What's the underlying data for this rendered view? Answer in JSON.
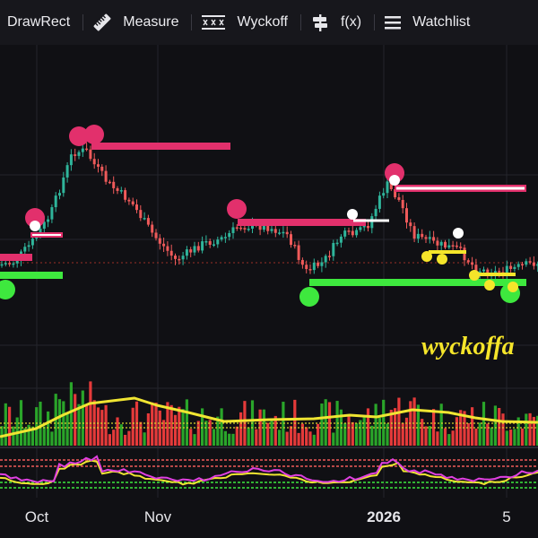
{
  "toolbar": {
    "items": [
      {
        "label": "DrawRect",
        "icon": "draw-rect-icon"
      },
      {
        "label": "Measure",
        "icon": "ruler-icon"
      },
      {
        "label": "Wyckoff",
        "icon": "wyckoff-icon"
      },
      {
        "label": "f(x)",
        "icon": "function-icon"
      },
      {
        "label": "Watchlist",
        "icon": "list-icon"
      }
    ]
  },
  "watermark": "wyckoffa",
  "colors": {
    "background": "#101014",
    "up_candle": "#2fb59b",
    "down_candle": "#ef5a5a",
    "resistance": "#e2306c",
    "support": "#3ee83e",
    "volume_ma": "#f0e532",
    "oscillator_fast": "#e040e0",
    "oscillator_slow": "#f0e532"
  },
  "x_axis": {
    "labels": [
      {
        "text": "Oct",
        "bold": false
      },
      {
        "text": "Nov",
        "bold": false
      },
      {
        "text": "2026",
        "bold": true
      },
      {
        "text": "5",
        "bold": false
      }
    ]
  }
}
